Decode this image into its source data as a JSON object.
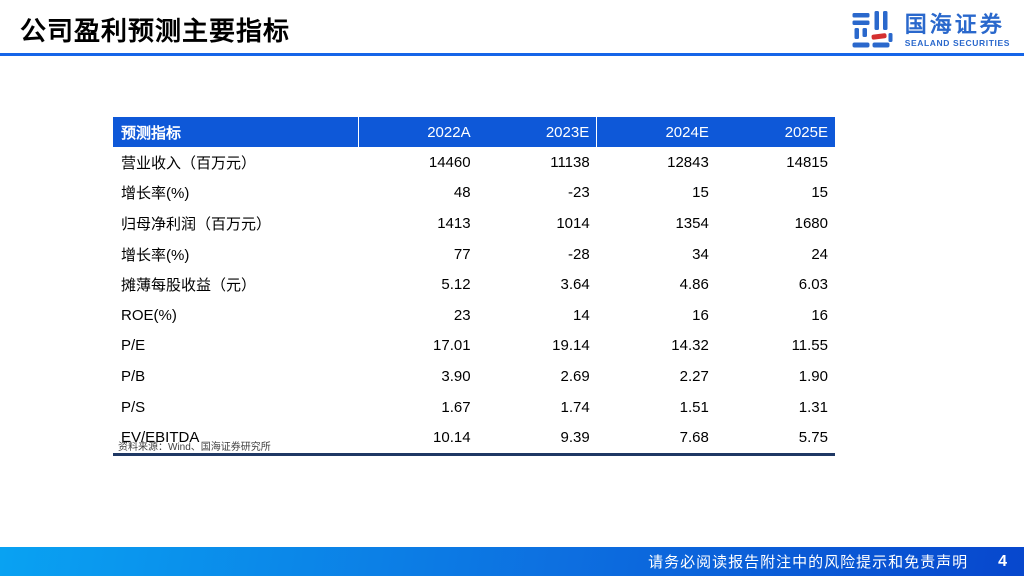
{
  "slide": {
    "title": "公司盈利预测主要指标",
    "source_note": "资料来源：Wind、国海证券研究所",
    "footer_text": "请务必阅读报告附注中的风险提示和免责声明",
    "page_number": "4"
  },
  "logo": {
    "name_cn": "国海证券",
    "name_en": "SEALAND SECURITIES"
  },
  "colors": {
    "header_blue": "#0e58d8",
    "divider_blue": "#1565e8",
    "table_bottom_border": "#1f3864",
    "footer_gradient_left": "#09a2f2",
    "footer_gradient_right": "#0747cd",
    "logo_blue": "#2a68cc",
    "logo_red": "#d43030"
  },
  "table": {
    "columns": [
      "预测指标",
      "2022A",
      "2023E",
      "2024E",
      "2025E"
    ],
    "rows": [
      {
        "label": "营业收入（百万元）",
        "values": [
          "14460",
          "11138",
          "12843",
          "14815"
        ]
      },
      {
        "label": "增长率(%)",
        "values": [
          "48",
          "-23",
          "15",
          "15"
        ]
      },
      {
        "label": "归母净利润（百万元）",
        "values": [
          "1413",
          "1014",
          "1354",
          "1680"
        ]
      },
      {
        "label": "增长率(%)",
        "values": [
          "77",
          "-28",
          "34",
          "24"
        ]
      },
      {
        "label": "摊薄每股收益（元）",
        "values": [
          "5.12",
          "3.64",
          "4.86",
          "6.03"
        ]
      },
      {
        "label": "ROE(%)",
        "values": [
          "23",
          "14",
          "16",
          "16"
        ]
      },
      {
        "label": "P/E",
        "values": [
          "17.01",
          "19.14",
          "14.32",
          "11.55"
        ]
      },
      {
        "label": "P/B",
        "values": [
          "3.90",
          "2.69",
          "2.27",
          "1.90"
        ]
      },
      {
        "label": "P/S",
        "values": [
          "1.67",
          "1.74",
          "1.51",
          "1.31"
        ]
      },
      {
        "label": "EV/EBITDA",
        "values": [
          "10.14",
          "9.39",
          "7.68",
          "5.75"
        ]
      }
    ]
  }
}
